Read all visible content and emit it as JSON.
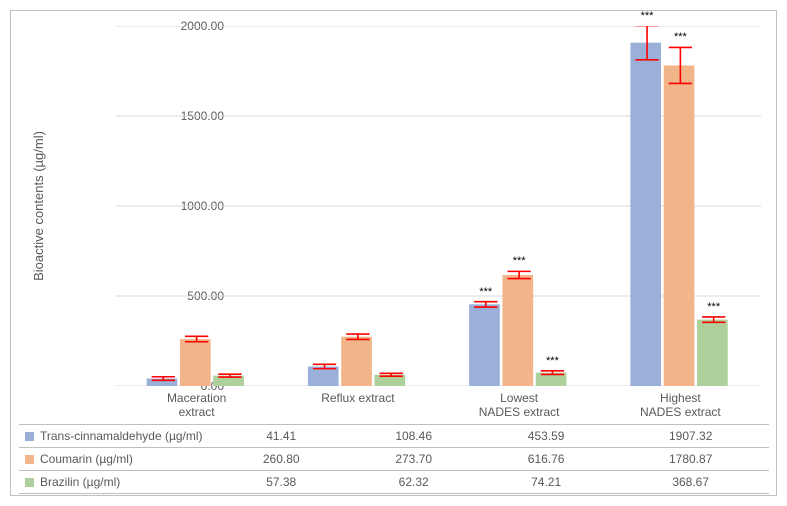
{
  "chart": {
    "type": "bar",
    "background_color": "#ffffff",
    "grid_color": "#d9d9d9",
    "border_color": "#bfbfbf",
    "text_color": "#595959",
    "error_color": "#ff0000",
    "bar_group_width": 0.62,
    "yaxis": {
      "title": "Bioactive contents (µg/ml)",
      "min": 0,
      "max": 2000,
      "tick_step": 500,
      "tick_labels": [
        "0.00",
        "500.00",
        "1000.00",
        "1500.00",
        "2000.00"
      ],
      "label_fontsize": 12,
      "title_fontsize": 13
    },
    "categories": [
      {
        "key": "maceration",
        "label_lines": [
          "Maceration",
          "extract"
        ]
      },
      {
        "key": "reflux",
        "label_lines": [
          "Reflux extract"
        ]
      },
      {
        "key": "lownades",
        "label_lines": [
          "Lowest",
          "NADES extract"
        ]
      },
      {
        "key": "highnades",
        "label_lines": [
          "Highest",
          "NADES extract"
        ]
      }
    ],
    "series": [
      {
        "key": "trans_cinn",
        "label": "Trans-cinnamaldehyde (µg/ml)",
        "color": "#9ab0d8",
        "values": [
          41.41,
          108.46,
          453.59,
          1907.32
        ],
        "err": [
          10,
          12,
          15,
          95
        ],
        "sig": [
          "",
          "",
          "***",
          "***"
        ],
        "formatted": [
          "41.41",
          "108.46",
          "453.59",
          "1907.32"
        ]
      },
      {
        "key": "coumarin",
        "label": "Coumarin (µg/ml)",
        "color": "#f2b489",
        "values": [
          260.8,
          273.7,
          616.76,
          1780.87
        ],
        "err": [
          15,
          15,
          20,
          100
        ],
        "sig": [
          "",
          "",
          "***",
          "***"
        ],
        "formatted": [
          "260.80",
          "273.70",
          "616.76",
          "1780.87"
        ]
      },
      {
        "key": "brazilin",
        "label": "Brazilin (µg/ml)",
        "color": "#aed19b",
        "values": [
          57.38,
          62.32,
          74.21,
          368.67
        ],
        "err": [
          8,
          8,
          10,
          15
        ],
        "sig": [
          "",
          "",
          "***",
          "***"
        ],
        "formatted": [
          "57.38",
          "62.32",
          "74.21",
          "368.67"
        ]
      }
    ]
  }
}
